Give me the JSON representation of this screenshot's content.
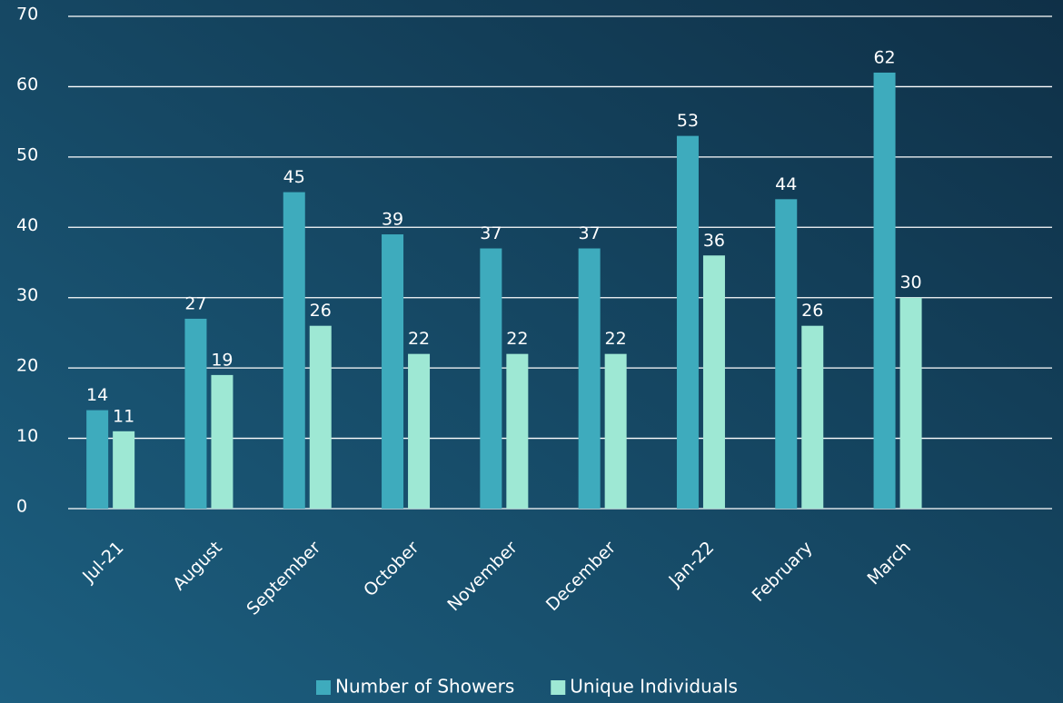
{
  "chart_data": {
    "type": "bar",
    "categories": [
      "Jul-21",
      "August",
      "September",
      "October",
      "November",
      "December",
      "Jan-22",
      "February",
      "March",
      null
    ],
    "series": [
      {
        "name": "Number of Showers",
        "color": "#3eabbd",
        "values": [
          14,
          27,
          45,
          39,
          37,
          37,
          53,
          44,
          62,
          null
        ]
      },
      {
        "name": "Unique Individuals",
        "color": "#9ee8d4",
        "values": [
          11,
          19,
          26,
          22,
          22,
          22,
          36,
          26,
          30,
          null
        ]
      }
    ],
    "ylim": [
      0,
      70
    ],
    "yticks": [
      0,
      10,
      20,
      30,
      40,
      50,
      60,
      70
    ],
    "grid": true,
    "legend": "bottom"
  }
}
